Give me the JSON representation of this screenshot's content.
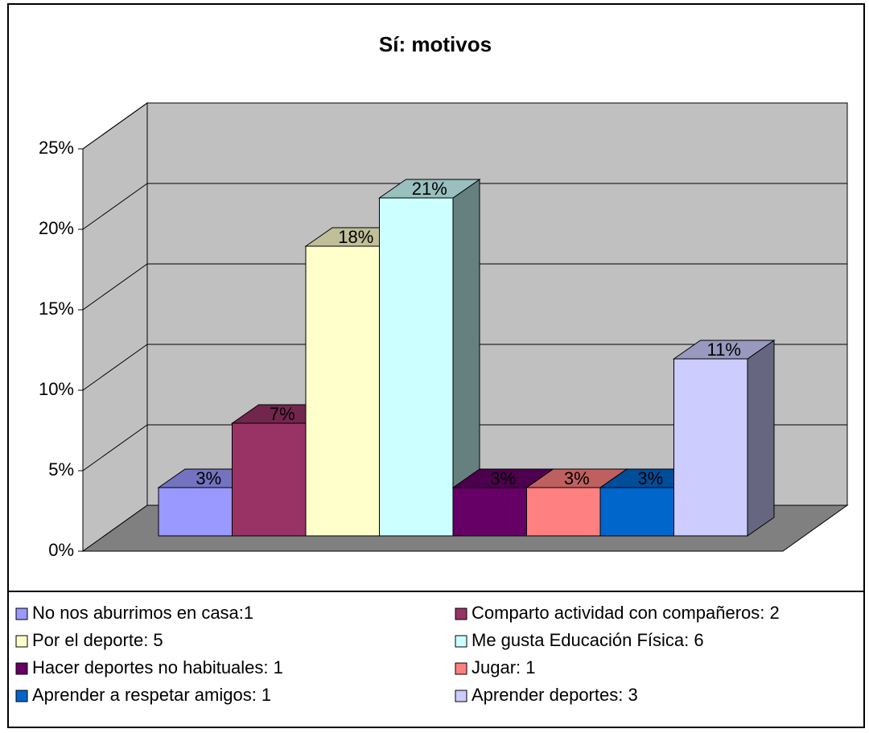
{
  "chart_data": {
    "type": "bar",
    "title": "Sí: motivos",
    "series": [
      {
        "name": "No nos aburrimos en casa:1",
        "color": "#9999ff",
        "values": [
          3
        ],
        "value_labels": [
          "3%"
        ]
      },
      {
        "name": "Comparto actividad con compañeros: 2",
        "color": "#993366",
        "values": [
          7
        ],
        "value_labels": [
          "7%"
        ]
      },
      {
        "name": "Por el deporte: 5",
        "color": "#ffffcc",
        "values": [
          18
        ],
        "value_labels": [
          "18%"
        ]
      },
      {
        "name": "Me gusta Educación Física: 6",
        "color": "#ccffff",
        "values": [
          21
        ],
        "value_labels": [
          "21%"
        ]
      },
      {
        "name": "Hacer deportes no habituales: 1",
        "color": "#660066",
        "values": [
          3
        ],
        "value_labels": [
          "3%"
        ]
      },
      {
        "name": "Jugar: 1",
        "color": "#ff8080",
        "values": [
          3
        ],
        "value_labels": [
          "3%"
        ]
      },
      {
        "name": "Aprender a respetar amigos: 1",
        "color": "#0066cc",
        "values": [
          3
        ],
        "value_labels": [
          "3%"
        ]
      },
      {
        "name": "Aprender deportes: 3",
        "color": "#ccccff",
        "values": [
          11
        ],
        "value_labels": [
          "11%"
        ]
      }
    ],
    "ylim": [
      0,
      25
    ],
    "yticks": [
      {
        "value": 0,
        "label": "0%"
      },
      {
        "value": 5,
        "label": "5%"
      },
      {
        "value": 10,
        "label": "10%"
      },
      {
        "value": 15,
        "label": "15%"
      },
      {
        "value": 20,
        "label": "20%"
      },
      {
        "value": 25,
        "label": "25%"
      }
    ],
    "grid": true,
    "legend": "bottom"
  }
}
